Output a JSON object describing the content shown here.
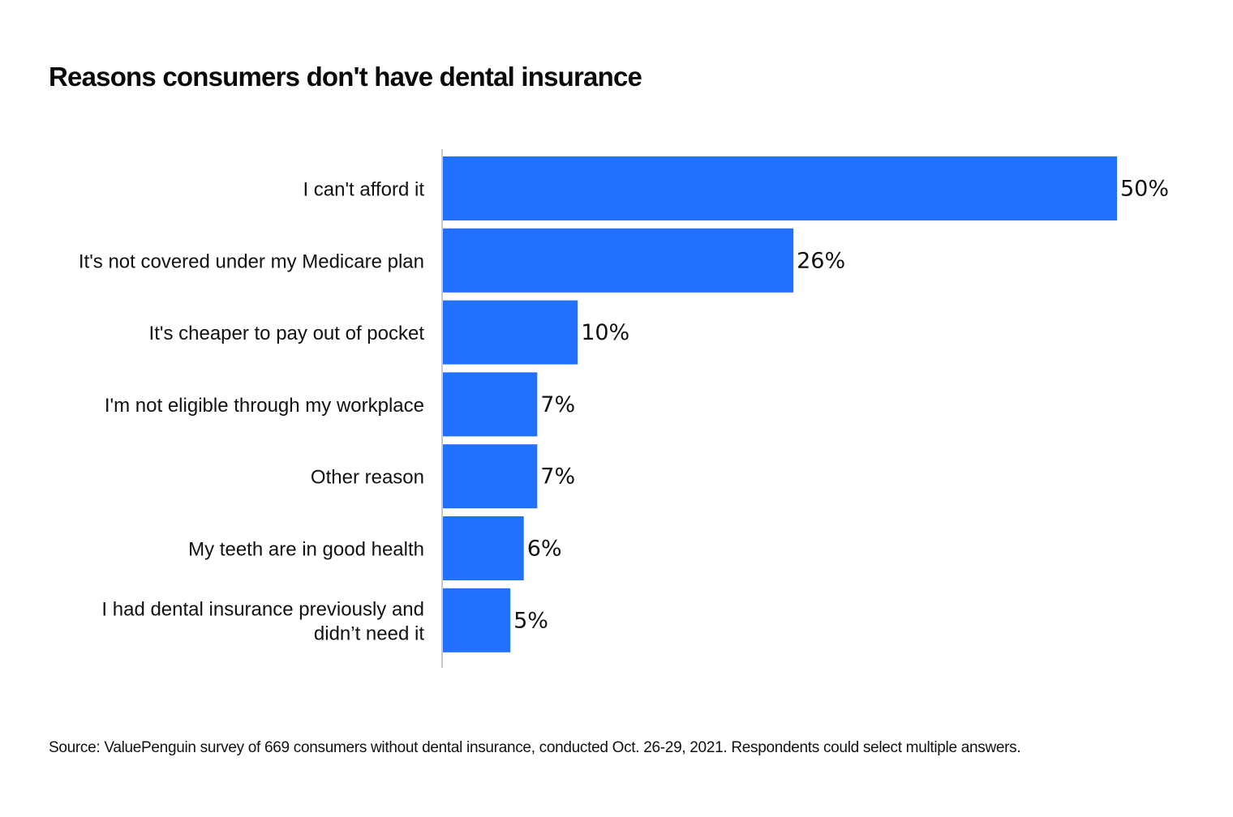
{
  "title": "Reasons consumers don't have dental insurance",
  "source": "Source: ValuePenguin survey of 669 consumers without dental insurance, conducted Oct. 26-29, 2021. Respondents could select multiple answers.",
  "colors": {
    "bar": "#2170ff",
    "axis": "#c8c8c8",
    "text": "#111111"
  },
  "chart_data": {
    "type": "bar",
    "orientation": "horizontal",
    "title": "Reasons consumers don't have dental insurance",
    "categories": [
      [
        "I can't afford it"
      ],
      [
        "It's not covered under my Medicare plan"
      ],
      [
        "It's cheaper to pay out of pocket"
      ],
      [
        "I'm not eligible through my workplace"
      ],
      [
        "Other reason"
      ],
      [
        "My teeth are in good health"
      ],
      [
        "I had dental insurance previously and",
        "didn’t need it"
      ]
    ],
    "values": [
      50,
      26,
      10,
      7,
      7,
      6,
      5
    ],
    "value_labels": [
      "50%",
      "26%",
      "10%",
      "7%",
      "7%",
      "6%",
      "5%"
    ],
    "unit": "%",
    "xlim": [
      0,
      50
    ],
    "grid": false,
    "legend": "none"
  }
}
